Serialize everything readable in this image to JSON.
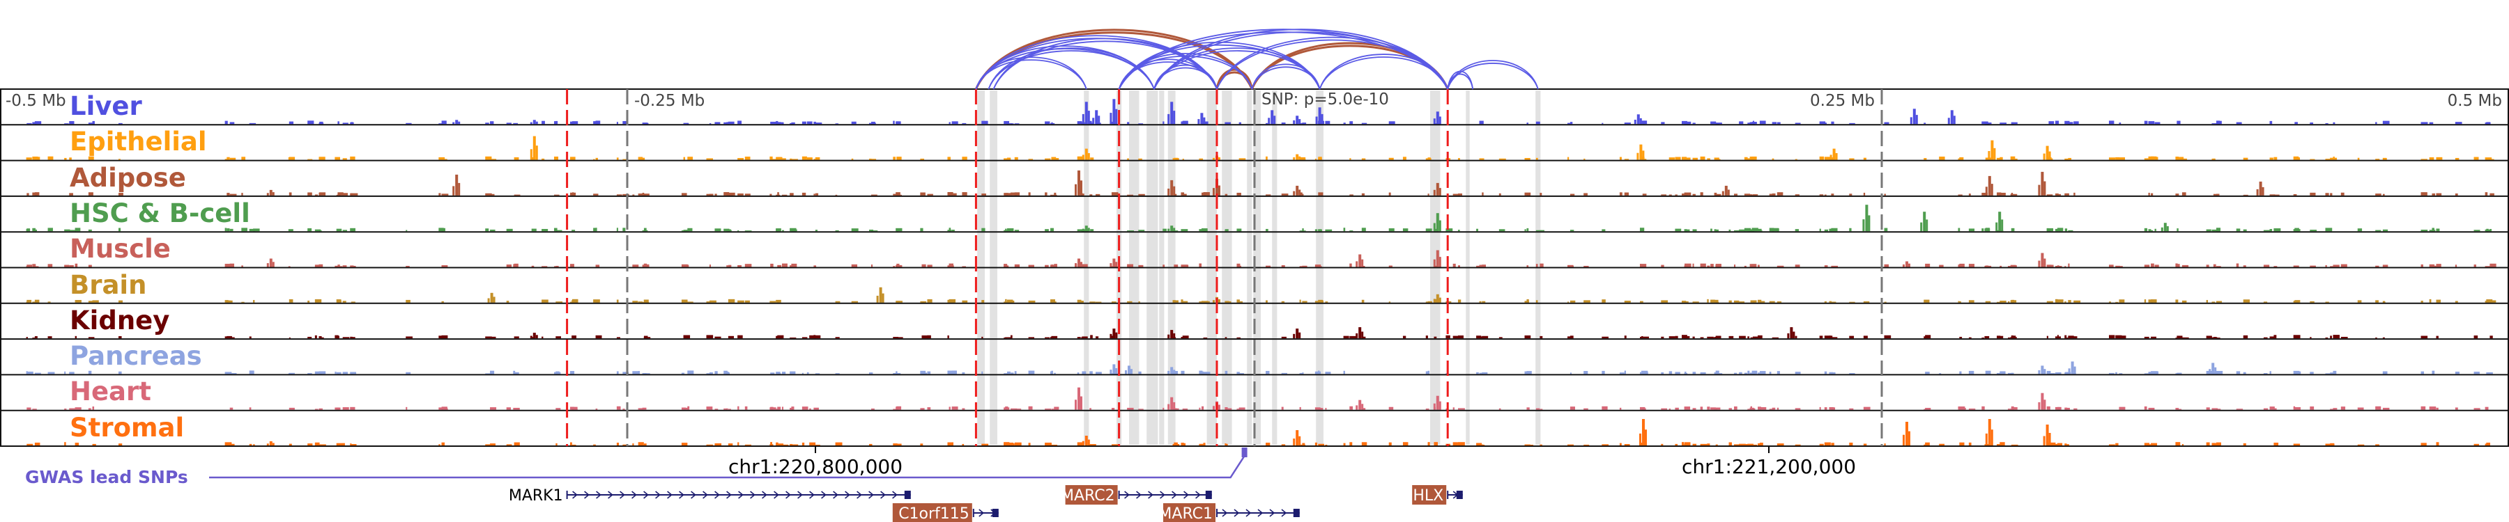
{
  "axis": {
    "labels": [
      "-0.5 Mb",
      "-0.25 Mb",
      "0.25 Mb",
      "0.5 Mb"
    ],
    "snp_label": "SNP: p=5.0e-10",
    "genomic_ticks": [
      "chr1:220,800,000",
      "chr1:221,200,000"
    ]
  },
  "gwas_label": "GWAS lead SNPs",
  "colors": {
    "arc_blue": "#5a5ae6",
    "arc_brown": "#b0583a",
    "gwas": "#6a5acd",
    "gene_box": "#b0583a",
    "gene_line": "#1c1c6e",
    "red_line": "#ee1c1c",
    "highlight": "#e2e2e2"
  },
  "chart_data": {
    "type": "area",
    "title": "",
    "x_unit": "kb relative to lead SNP",
    "xlim": [
      -500,
      500
    ],
    "tracks": [
      {
        "name": "Liver",
        "color": "#5050e0",
        "peaks": [
          [
            -67,
            0.8
          ],
          [
            -63,
            0.5
          ],
          [
            -56,
            0.9
          ],
          [
            -33,
            0.8
          ],
          [
            -21,
            0.4
          ],
          [
            7,
            0.5
          ],
          [
            17,
            0.3
          ],
          [
            26,
            0.6
          ],
          [
            73,
            0.45
          ],
          [
            153,
            0.35
          ],
          [
            263,
            0.55
          ],
          [
            278,
            0.5
          ],
          [
            -318,
            0.15
          ],
          [
            -287,
            0.15
          ]
        ]
      },
      {
        "name": "Epithelial",
        "color": "#ff9f10",
        "peaks": [
          [
            -287,
            0.85
          ],
          [
            -67,
            0.4
          ],
          [
            17,
            0.2
          ],
          [
            154,
            0.55
          ],
          [
            231,
            0.4
          ],
          [
            294,
            0.7
          ],
          [
            316,
            0.5
          ],
          [
            -15,
            0.15
          ]
        ]
      },
      {
        "name": "Adipose",
        "color": "#b0583a",
        "peaks": [
          [
            -318,
            0.75
          ],
          [
            -70,
            0.9
          ],
          [
            -33,
            0.55
          ],
          [
            -15,
            0.6
          ],
          [
            17,
            0.35
          ],
          [
            73,
            0.45
          ],
          [
            188,
            0.35
          ],
          [
            293,
            0.7
          ],
          [
            314,
            0.85
          ],
          [
            401,
            0.5
          ],
          [
            -392,
            0.2
          ]
        ]
      },
      {
        "name": "HSC & B-cell",
        "color": "#4f9d4f",
        "peaks": [
          [
            73,
            0.65
          ],
          [
            244,
            0.95
          ],
          [
            267,
            0.7
          ],
          [
            297,
            0.7
          ],
          [
            363,
            0.3
          ],
          [
            -67,
            0.2
          ],
          [
            -33,
            0.2
          ]
        ]
      },
      {
        "name": "Muscle",
        "color": "#c8605a",
        "peaks": [
          [
            -392,
            0.3
          ],
          [
            73,
            0.6
          ],
          [
            42,
            0.45
          ],
          [
            314,
            0.5
          ],
          [
            -70,
            0.3
          ],
          [
            -56,
            0.3
          ],
          [
            260,
            0.2
          ]
        ]
      },
      {
        "name": "Brain",
        "color": "#c49028",
        "peaks": [
          [
            -304,
            0.35
          ],
          [
            -149,
            0.55
          ],
          [
            73,
            0.3
          ],
          [
            -15,
            0.2
          ]
        ]
      },
      {
        "name": "Kidney",
        "color": "#6b0000",
        "peaks": [
          [
            42,
            0.4
          ],
          [
            17,
            0.35
          ],
          [
            -56,
            0.35
          ],
          [
            -33,
            0.3
          ],
          [
            214,
            0.4
          ],
          [
            -287,
            0.2
          ]
        ]
      },
      {
        "name": "Pancreas",
        "color": "#8ea4e0",
        "peaks": [
          [
            -56,
            0.35
          ],
          [
            -50,
            0.3
          ],
          [
            -33,
            0.25
          ],
          [
            326,
            0.45
          ],
          [
            382,
            0.4
          ],
          [
            314,
            0.3
          ]
        ]
      },
      {
        "name": "Heart",
        "color": "#d86878",
        "peaks": [
          [
            -70,
            0.8
          ],
          [
            -33,
            0.45
          ],
          [
            73,
            0.5
          ],
          [
            42,
            0.35
          ],
          [
            314,
            0.6
          ],
          [
            -15,
            0.3
          ]
        ]
      },
      {
        "name": "Stromal",
        "color": "#ff7010",
        "peaks": [
          [
            155,
            0.95
          ],
          [
            260,
            0.85
          ],
          [
            293,
            0.95
          ],
          [
            316,
            0.75
          ],
          [
            17,
            0.55
          ],
          [
            -67,
            0.35
          ],
          [
            -392,
            0.15
          ]
        ]
      }
    ],
    "red_dashed_lines_kb": [
      -274,
      -111,
      -54,
      -15,
      77
    ],
    "grey_dashed_lines_kb": [
      -250,
      0,
      250
    ],
    "highlight_regions_kb": [
      [
        -109,
        3
      ],
      [
        -104,
        3
      ],
      [
        -67,
        2
      ],
      [
        -54,
        2
      ],
      [
        -48,
        4
      ],
      [
        -42,
        2
      ],
      [
        -40,
        3
      ],
      [
        -37,
        2
      ],
      [
        -33,
        3
      ],
      [
        -17,
        4
      ],
      [
        -11,
        4
      ],
      [
        -2,
        2
      ],
      [
        1,
        3
      ],
      [
        8,
        2
      ],
      [
        26,
        3
      ],
      [
        72,
        4
      ],
      [
        85,
        1.5
      ],
      [
        113,
        2
      ]
    ],
    "loops": [
      {
        "from": -111,
        "to": -1,
        "color": "brown"
      },
      {
        "from": -15,
        "to": -1,
        "color": "brown"
      },
      {
        "from": -1,
        "to": 77,
        "color": "brown"
      },
      {
        "from": -111,
        "to": -40,
        "color": "blue"
      },
      {
        "from": -111,
        "to": -67,
        "color": "blue"
      },
      {
        "from": -111,
        "to": -15,
        "color": "blue"
      },
      {
        "from": -106,
        "to": -40,
        "color": "blue"
      },
      {
        "from": -104,
        "to": -15,
        "color": "blue"
      },
      {
        "from": -54,
        "to": 77,
        "color": "blue"
      },
      {
        "from": -54,
        "to": 26,
        "color": "blue"
      },
      {
        "from": -54,
        "to": -1,
        "color": "blue"
      },
      {
        "from": -40,
        "to": 77,
        "color": "blue"
      },
      {
        "from": -40,
        "to": 26,
        "color": "blue"
      },
      {
        "from": -54,
        "to": -15,
        "color": "blue"
      },
      {
        "from": -40,
        "to": -15,
        "color": "blue"
      },
      {
        "from": -15,
        "to": 77,
        "color": "blue"
      },
      {
        "from": -1,
        "to": 26,
        "color": "blue"
      },
      {
        "from": 26,
        "to": 77,
        "color": "blue"
      },
      {
        "from": 77,
        "to": 113,
        "color": "blue"
      },
      {
        "from": 77,
        "to": 87,
        "color": "blue"
      }
    ],
    "genomic_tick_kb": [
      -175,
      205
    ],
    "gwas_snp_kb": -4,
    "genes": [
      {
        "name": "MARK1",
        "start": -274,
        "end": -137,
        "row": 0,
        "boxed": false
      },
      {
        "name": "C1orf115",
        "start": -112,
        "end": -102,
        "row": 1,
        "boxed": true
      },
      {
        "name": "MARC2",
        "start": -54,
        "end": -17,
        "row": 0,
        "boxed": true
      },
      {
        "name": "MARC1",
        "start": -15,
        "end": 18,
        "row": 1,
        "boxed": true
      },
      {
        "name": "HLX",
        "start": 77,
        "end": 83,
        "row": 0,
        "boxed": true
      }
    ]
  }
}
